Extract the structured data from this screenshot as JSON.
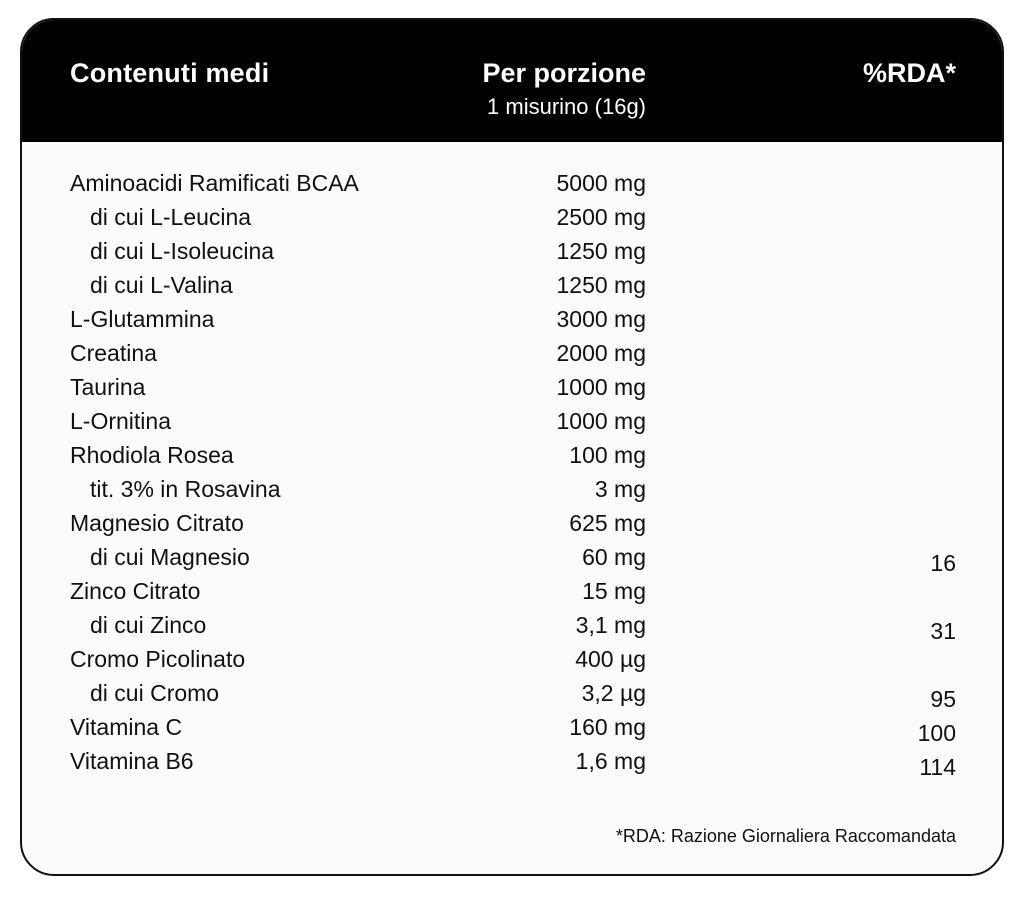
{
  "header": {
    "name_label": "Contenuti medi",
    "amount_label": "Per porzione",
    "amount_sublabel": "1 misurino (16g)",
    "rda_label": "%RDA*"
  },
  "rows": [
    {
      "name": "Aminoacidi Ramificati BCAA",
      "amount": "5000 mg",
      "rda": ""
    },
    {
      "name": "di cui L-Leucina",
      "amount": "2500 mg",
      "rda": ""
    },
    {
      "name": "di cui L-Isoleucina",
      "amount": "1250 mg",
      "rda": ""
    },
    {
      "name": "di cui L-Valina",
      "amount": "1250 mg",
      "rda": ""
    },
    {
      "name": "L-Glutammina",
      "amount": "3000 mg",
      "rda": ""
    },
    {
      "name": "Creatina",
      "amount": "2000 mg",
      "rda": ""
    },
    {
      "name": "Taurina",
      "amount": "1000 mg",
      "rda": ""
    },
    {
      "name": "L-Ornitina",
      "amount": "1000 mg",
      "rda": ""
    },
    {
      "name": "Rhodiola Rosea",
      "amount": "100 mg",
      "rda": ""
    },
    {
      "name": "tit. 3% in Rosavina",
      "amount": "3 mg",
      "rda": ""
    },
    {
      "name": "Magnesio Citrato",
      "amount": "625 mg",
      "rda": ""
    },
    {
      "name": "di cui Magnesio",
      "amount": "60 mg",
      "rda": "16"
    },
    {
      "name": "Zinco Citrato",
      "amount": "15 mg",
      "rda": ""
    },
    {
      "name": "di cui Zinco",
      "amount": "3,1 mg",
      "rda": "31"
    },
    {
      "name": "Cromo Picolinato",
      "amount": "400 µg",
      "rda": ""
    },
    {
      "name": "di cui Cromo",
      "amount": "3,2 µg",
      "rda": "95"
    },
    {
      "name": "Vitamina C",
      "amount": "160 mg",
      "rda": "100"
    },
    {
      "name": "Vitamina B6",
      "amount": "1,6 mg",
      "rda": "114"
    }
  ],
  "footnote": "*RDA: Razione Giornaliera Raccomandata"
}
